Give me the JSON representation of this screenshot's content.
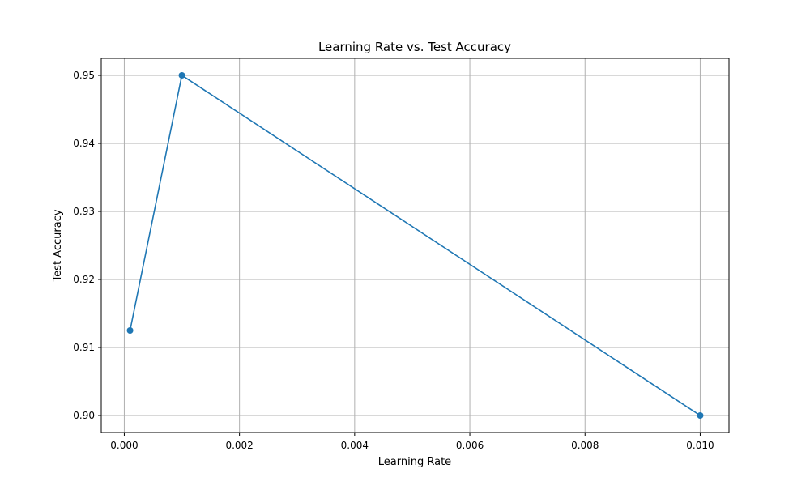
{
  "chart_data": {
    "type": "line",
    "title": "Learning Rate vs. Test Accuracy",
    "xlabel": "Learning Rate",
    "ylabel": "Test Accuracy",
    "xlim": [
      -0.0004,
      0.0105
    ],
    "ylim": [
      0.8975,
      0.9525
    ],
    "xticks": [
      0.0,
      0.002,
      0.004,
      0.006,
      0.008,
      0.01
    ],
    "xtick_labels": [
      "0.000",
      "0.002",
      "0.004",
      "0.006",
      "0.008",
      "0.010"
    ],
    "yticks": [
      0.9,
      0.91,
      0.92,
      0.93,
      0.94,
      0.95
    ],
    "ytick_labels": [
      "0.90",
      "0.91",
      "0.92",
      "0.93",
      "0.94",
      "0.95"
    ],
    "grid": true,
    "series": [
      {
        "name": "test accuracy",
        "color": "#1f77b4",
        "marker": "circle",
        "x": [
          0.0001,
          0.001,
          0.01
        ],
        "y": [
          0.9125,
          0.95,
          0.9
        ]
      }
    ]
  }
}
